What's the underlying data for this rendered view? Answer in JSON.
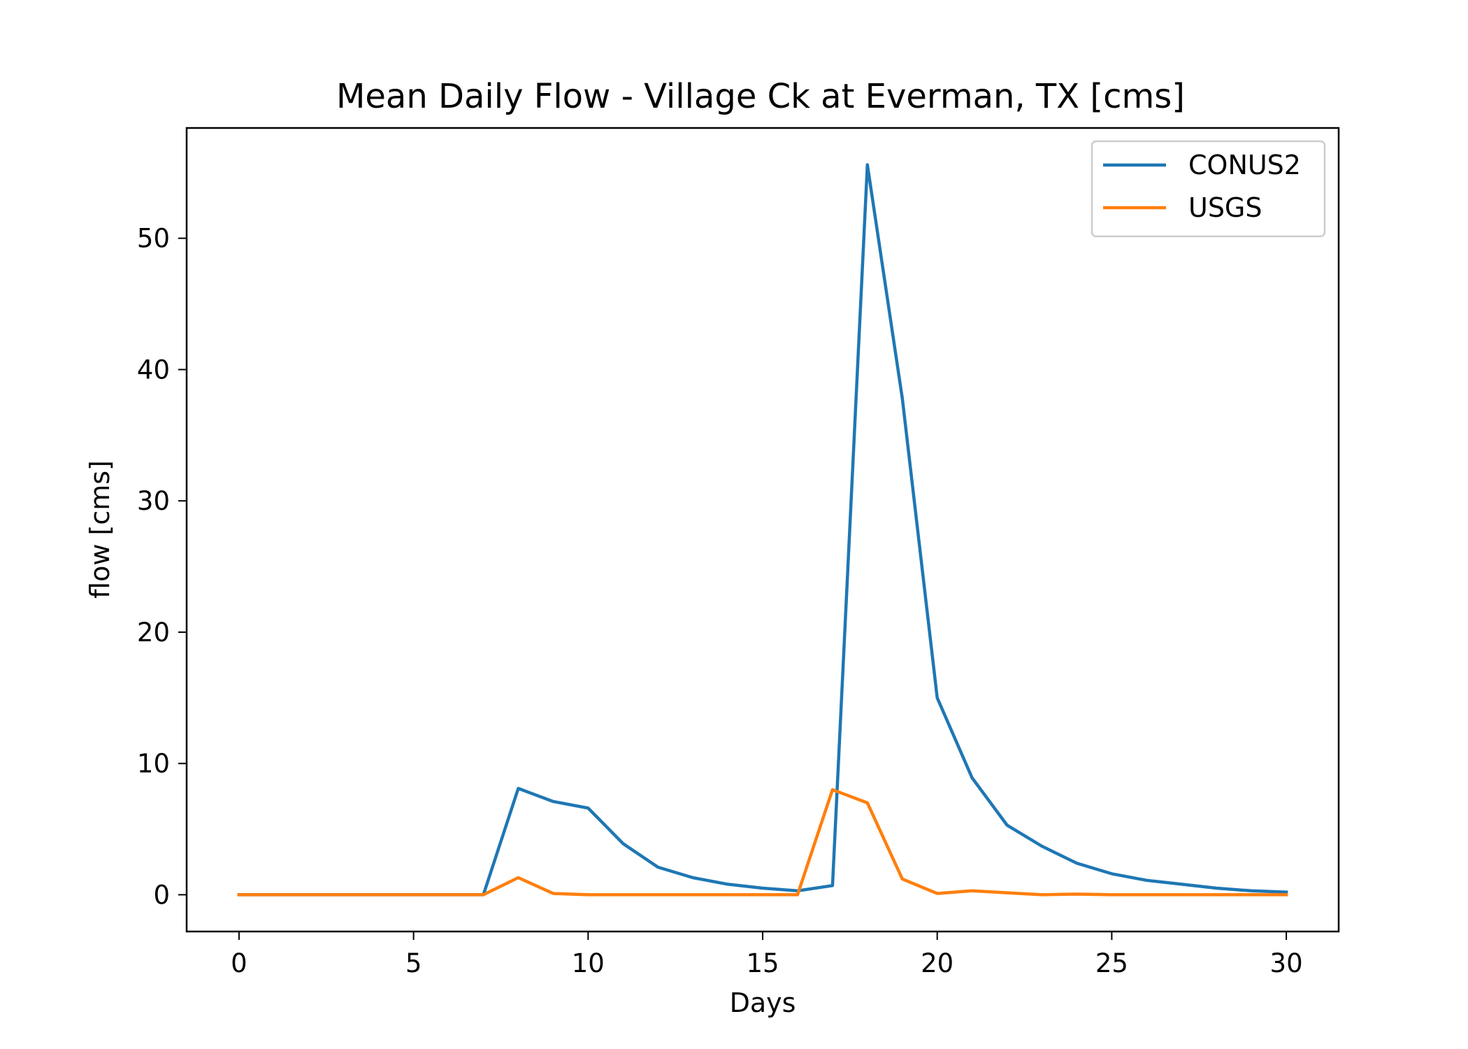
{
  "chart_data": {
    "type": "line",
    "title": "Mean Daily Flow - Village Ck at Everman, TX [cms]",
    "xlabel": "Days",
    "ylabel": "flow [cms]",
    "xlim": [
      -1.5,
      31.5
    ],
    "ylim": [
      -2.8,
      58.4
    ],
    "xticks": [
      0,
      5,
      10,
      15,
      20,
      25,
      30
    ],
    "yticks": [
      0,
      10,
      20,
      30,
      40,
      50
    ],
    "legend": "top-right",
    "grid": false,
    "x": [
      0,
      1,
      2,
      3,
      4,
      5,
      6,
      7,
      8,
      9,
      10,
      11,
      12,
      13,
      14,
      15,
      16,
      17,
      18,
      19,
      20,
      21,
      22,
      23,
      24,
      25,
      26,
      27,
      28,
      29,
      30
    ],
    "series": [
      {
        "name": "CONUS2",
        "color": "#1f77b4",
        "values": [
          0,
          0,
          0,
          0,
          0,
          0,
          0,
          0,
          8.1,
          7.1,
          6.6,
          3.9,
          2.1,
          1.3,
          0.8,
          0.5,
          0.3,
          0.7,
          55.6,
          37.8,
          15.0,
          8.9,
          5.3,
          3.7,
          2.4,
          1.6,
          1.1,
          0.8,
          0.5,
          0.3,
          0.2
        ]
      },
      {
        "name": "USGS",
        "color": "#ff7f0e",
        "values": [
          0,
          0,
          0,
          0,
          0,
          0,
          0,
          0,
          1.3,
          0.1,
          0,
          0,
          0,
          0,
          0,
          0,
          0,
          8.0,
          7.0,
          1.2,
          0.1,
          0.3,
          0.15,
          0,
          0.05,
          0,
          0,
          0,
          0,
          0,
          0
        ]
      }
    ]
  }
}
